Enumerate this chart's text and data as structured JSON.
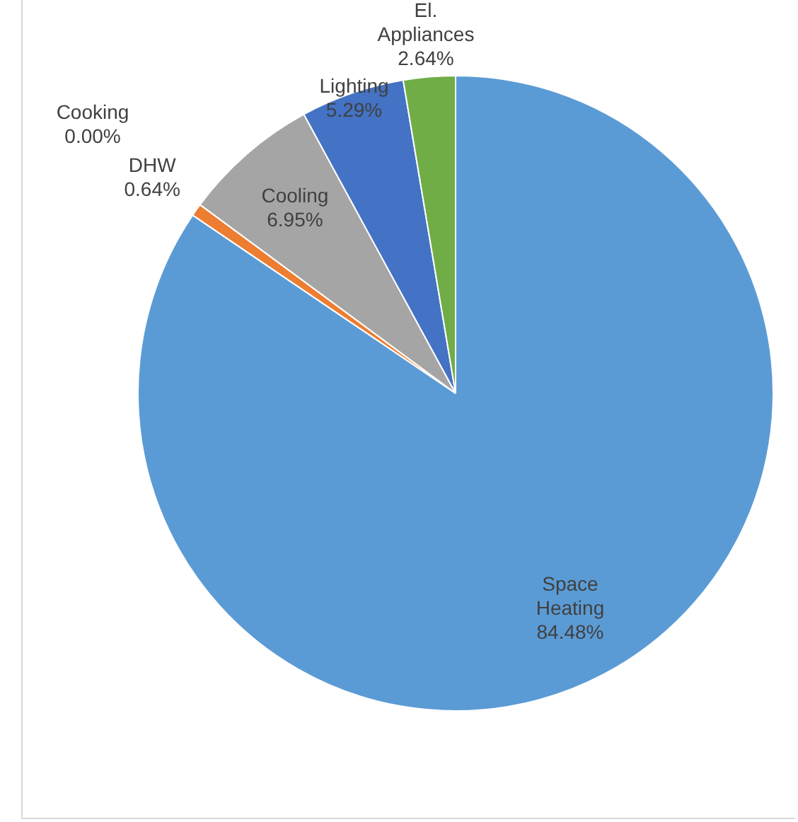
{
  "chart_data": {
    "type": "pie",
    "categories": [
      "Space Heating",
      "DHW",
      "Cooking",
      "Cooling",
      "Lighting",
      "El. Appliances"
    ],
    "values": [
      84.48,
      0.64,
      0.0,
      6.95,
      5.29,
      2.64
    ],
    "value_labels": [
      "84.48%",
      "0.64%",
      "0.00%",
      "6.95%",
      "5.29%",
      "2.64%"
    ],
    "colors": [
      "#5b9bd5",
      "#ed7d31",
      "#ffc000",
      "#a5a5a5",
      "#4472c4",
      "#70ad47"
    ],
    "legend": false
  }
}
